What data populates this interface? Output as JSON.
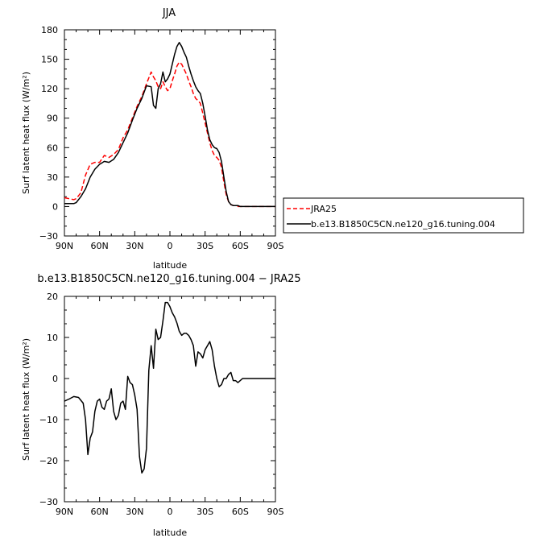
{
  "top_chart": {
    "title": "JJA",
    "xlabel": "latitude",
    "ylabel": "Surf latent heat flux (W/m²)",
    "legend": [
      "JRA25",
      "b.e13.B1850C5CN.ne120_g16.tuning.004"
    ]
  },
  "bottom_chart": {
    "title": "b.e13.B1850C5CN.ne120_g16.tuning.004 − JRA25",
    "xlabel": "latitude",
    "ylabel": "Surf latent heat flux (W/m²)"
  },
  "chart_data": [
    {
      "type": "line",
      "title": "JJA",
      "xlabel": "latitude",
      "ylabel": "Surf latent heat flux (W/m²)",
      "xlim": [
        90,
        -90
      ],
      "ylim": [
        -30,
        180
      ],
      "xticks": [
        90,
        60,
        30,
        0,
        -30,
        -60,
        -90
      ],
      "xticklabels": [
        "90N",
        "60N",
        "30N",
        "0",
        "30S",
        "60S",
        "90S"
      ],
      "yticks": [
        -30,
        0,
        30,
        60,
        90,
        120,
        150,
        180
      ],
      "yticklabels": [
        "−30",
        "0",
        "30",
        "60",
        "90",
        "120",
        "150",
        "180"
      ],
      "legend_position": "right",
      "series": [
        {
          "name": "JRA25",
          "color": "#ff0000",
          "dash": "dashed",
          "x": [
            90,
            86,
            82,
            80,
            76,
            72,
            68,
            64,
            60,
            56,
            52,
            48,
            44,
            40,
            36,
            32,
            28,
            24,
            20,
            16,
            14,
            12,
            10,
            8,
            6,
            4,
            2,
            0,
            -2,
            -4,
            -6,
            -8,
            -10,
            -12,
            -14,
            -16,
            -18,
            -20,
            -22,
            -24,
            -26,
            -28,
            -30,
            -32,
            -34,
            -36,
            -38,
            -40,
            -42,
            -44,
            -46,
            -48,
            -50,
            -52,
            -54,
            -56,
            -58,
            -60,
            -62,
            -64,
            -66,
            -70,
            -74,
            -78,
            -82,
            -86,
            -90
          ],
          "y": [
            9,
            8,
            7,
            8,
            14,
            32,
            43,
            45,
            45,
            52,
            50,
            53,
            58,
            70,
            78,
            90,
            102,
            112,
            125,
            137,
            132,
            128,
            122,
            120,
            127,
            122,
            118,
            120,
            128,
            135,
            143,
            147,
            145,
            140,
            135,
            128,
            122,
            115,
            110,
            108,
            105,
            95,
            85,
            75,
            65,
            57,
            52,
            50,
            47,
            40,
            25,
            12,
            5,
            2,
            1,
            1,
            0,
            0,
            0,
            0,
            0,
            0,
            0,
            0,
            0,
            0,
            0
          ]
        },
        {
          "name": "b.e13.B1850C5CN.ne120_g16.tuning.004",
          "color": "#000000",
          "dash": "solid",
          "x": [
            90,
            86,
            82,
            80,
            76,
            72,
            68,
            64,
            60,
            56,
            52,
            48,
            44,
            40,
            36,
            32,
            28,
            24,
            20,
            16,
            14,
            12,
            10,
            8,
            6,
            4,
            2,
            0,
            -2,
            -4,
            -6,
            -8,
            -10,
            -12,
            -14,
            -16,
            -18,
            -20,
            -22,
            -24,
            -26,
            -28,
            -30,
            -32,
            -34,
            -36,
            -38,
            -40,
            -42,
            -44,
            -46,
            -48,
            -50,
            -52,
            -54,
            -56,
            -58,
            -60,
            -62,
            -64,
            -66,
            -70,
            -74,
            -78,
            -82,
            -86,
            -90
          ],
          "y": [
            3,
            3,
            3,
            4,
            10,
            18,
            30,
            38,
            43,
            46,
            45,
            48,
            55,
            65,
            75,
            88,
            100,
            110,
            123,
            122,
            103,
            100,
            120,
            125,
            137,
            127,
            130,
            135,
            145,
            155,
            163,
            167,
            163,
            157,
            152,
            143,
            135,
            128,
            122,
            118,
            115,
            105,
            92,
            78,
            68,
            63,
            60,
            59,
            55,
            46,
            30,
            15,
            5,
            2,
            1,
            1,
            1,
            0,
            0,
            0,
            0,
            0,
            0,
            0,
            0,
            0,
            0
          ]
        }
      ]
    },
    {
      "type": "line",
      "title": "b.e13.B1850C5CN.ne120_g16.tuning.004 − JRA25",
      "xlabel": "latitude",
      "ylabel": "Surf latent heat flux (W/m²)",
      "xlim": [
        90,
        -90
      ],
      "ylim": [
        -30,
        20
      ],
      "xticks": [
        90,
        60,
        30,
        0,
        -30,
        -60,
        -90
      ],
      "xticklabels": [
        "90N",
        "60N",
        "30N",
        "0",
        "30S",
        "60S",
        "90S"
      ],
      "yticks": [
        -30,
        -20,
        -10,
        0,
        10,
        20
      ],
      "yticklabels": [
        "−30",
        "−20",
        "−10",
        "0",
        "10",
        "20"
      ],
      "series": [
        {
          "name": "b.e13.B1850C5CN.ne120_g16.tuning.004 − JRA25",
          "color": "#000000",
          "dash": "solid",
          "x": [
            90,
            86,
            82,
            78,
            74,
            72,
            70,
            68,
            66,
            64,
            62,
            60,
            58,
            56,
            54,
            52,
            50,
            48,
            46,
            44,
            42,
            40,
            38,
            36,
            34,
            32,
            30,
            28,
            26,
            24,
            22,
            20,
            18,
            16,
            14,
            12,
            10,
            8,
            6,
            4,
            2,
            0,
            -2,
            -4,
            -6,
            -8,
            -10,
            -12,
            -14,
            -16,
            -18,
            -20,
            -22,
            -24,
            -26,
            -28,
            -30,
            -32,
            -34,
            -36,
            -38,
            -40,
            -42,
            -44,
            -46,
            -48,
            -50,
            -52,
            -54,
            -56,
            -58,
            -60,
            -62,
            -64,
            -66,
            -68,
            -70,
            -72,
            -74,
            -76,
            -78,
            -80,
            -82,
            -84,
            -86,
            -88,
            -90
          ],
          "y": [
            -5.5,
            -5,
            -4.4,
            -4.6,
            -6,
            -10,
            -18.5,
            -14.5,
            -13,
            -8,
            -5.5,
            -5,
            -7,
            -7.5,
            -5.5,
            -5,
            -2.5,
            -8,
            -10,
            -9,
            -6,
            -5.5,
            -7.5,
            0.5,
            -1,
            -1.5,
            -4,
            -7.5,
            -19,
            -23,
            -22,
            -17,
            2,
            8,
            2.5,
            12,
            9.5,
            10,
            14,
            18.5,
            18.5,
            17.5,
            16,
            15,
            13.5,
            11.5,
            10.5,
            11,
            11,
            10.5,
            9.5,
            8,
            3,
            6.5,
            6,
            5,
            7,
            8,
            9,
            7,
            3,
            0,
            -2,
            -1.5,
            0,
            0,
            1,
            1.5,
            -0.5,
            -0.5,
            -1,
            -0.5,
            0,
            0,
            0,
            0,
            0,
            0,
            0,
            0,
            0,
            0,
            0,
            0,
            0,
            0,
            0
          ]
        }
      ]
    }
  ]
}
